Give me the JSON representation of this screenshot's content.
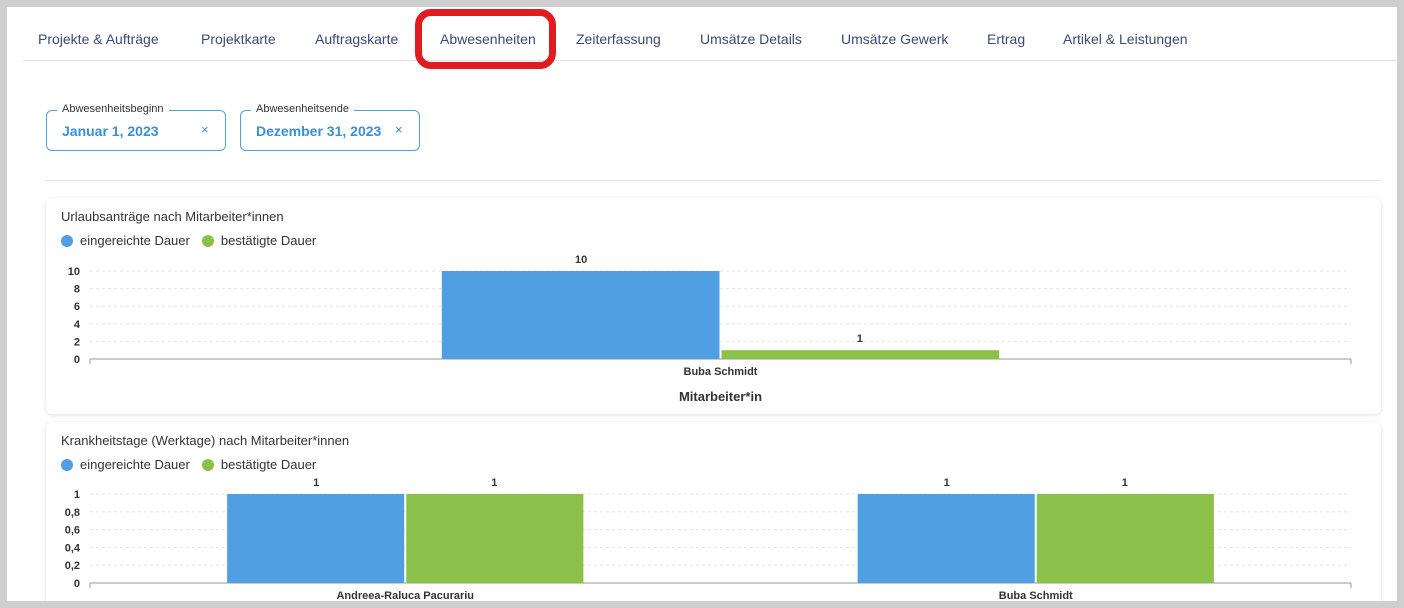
{
  "tabs": [
    {
      "label": "Projekte & Aufträge"
    },
    {
      "label": "Projektkarte"
    },
    {
      "label": "Auftragskarte"
    },
    {
      "label": "Abwesenheiten",
      "active": true
    },
    {
      "label": "Zeiterfassung"
    },
    {
      "label": "Umsätze Details"
    },
    {
      "label": "Umsätze Gewerk"
    },
    {
      "label": "Ertrag"
    },
    {
      "label": "Artikel & Leistungen"
    }
  ],
  "filters": {
    "start": {
      "label": "Abwesenheitsbeginn",
      "value": "Januar 1, 2023",
      "clear": "×"
    },
    "end": {
      "label": "Abwesenheitsende",
      "value": "Dezember 31, 2023",
      "clear": "×"
    }
  },
  "colors": {
    "submitted": "#519fe3",
    "confirmed": "#8bc14a",
    "highlight": "#e01b22"
  },
  "chart_data": [
    {
      "type": "bar",
      "title": "Urlaubsanträge nach Mitarbeiter*innen",
      "xlabel": "Mitarbeiter*in",
      "ylabel": "",
      "categories": [
        "Buba Schmidt"
      ],
      "series": [
        {
          "name": "eingereichte Dauer",
          "values": [
            10
          ]
        },
        {
          "name": "bestätigte Dauer",
          "values": [
            1
          ]
        }
      ],
      "ylim": [
        0,
        10
      ],
      "yticks": [
        "0",
        "2",
        "4",
        "6",
        "8",
        "10"
      ],
      "legend": "top-left",
      "grid": true
    },
    {
      "type": "bar",
      "title": "Krankheitstage (Werktage) nach Mitarbeiter*innen",
      "xlabel": "",
      "ylabel": "",
      "categories": [
        "Andreea-Raluca Pacurariu",
        "Buba Schmidt"
      ],
      "series": [
        {
          "name": "eingereichte Dauer",
          "values": [
            1,
            1
          ]
        },
        {
          "name": "bestätigte Dauer",
          "values": [
            1,
            1
          ]
        }
      ],
      "ylim": [
        0,
        1
      ],
      "yticks": [
        "0",
        "0,2",
        "0,4",
        "0,6",
        "0,8",
        "1"
      ],
      "legend": "top-left",
      "grid": true
    }
  ]
}
